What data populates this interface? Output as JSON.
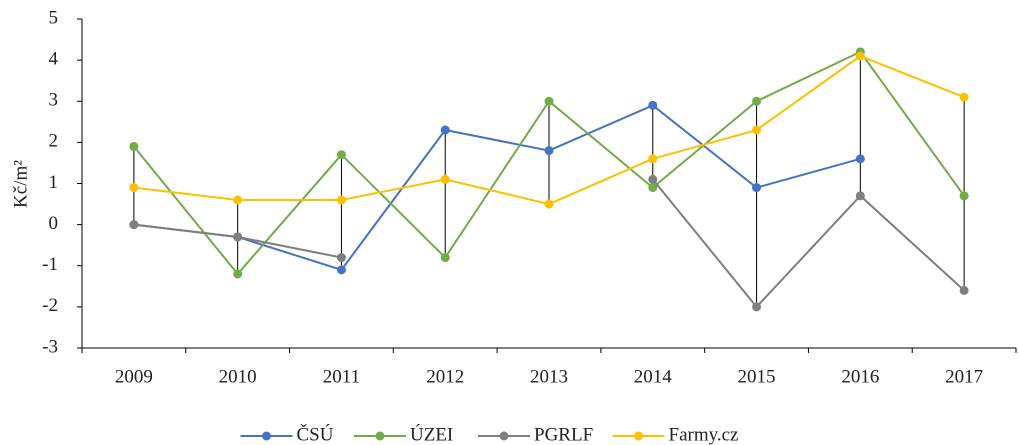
{
  "chart_data": {
    "type": "line",
    "y_label": "Kč/m²",
    "categories": [
      "2009",
      "2010",
      "2011",
      "2012",
      "2013",
      "2014",
      "2015",
      "2016",
      "2017"
    ],
    "series": [
      {
        "name": "ČSÚ",
        "color": "#4472c4",
        "values": [
          0,
          -0.3,
          -1.1,
          2.3,
          1.8,
          2.9,
          0.9,
          1.6,
          null
        ]
      },
      {
        "name": "ÚZEI",
        "color": "#70ad47",
        "values": [
          1.9,
          -1.2,
          1.7,
          -0.8,
          3.0,
          0.9,
          3.0,
          4.2,
          0.7
        ]
      },
      {
        "name": "PGRLF",
        "color": "#7f7f7f",
        "values": [
          0,
          -0.3,
          -0.8,
          null,
          null,
          1.1,
          -2.0,
          0.7,
          -1.6
        ]
      },
      {
        "name": "Farmy.cz",
        "color": "#ffc000",
        "values": [
          0.9,
          0.6,
          0.6,
          1.1,
          0.5,
          1.6,
          2.3,
          4.1,
          3.1
        ]
      }
    ],
    "ylim": [
      -3,
      5
    ],
    "yticks": [
      -3,
      -2,
      -1,
      0,
      1,
      2,
      3,
      4,
      5
    ],
    "high_low_lines": true,
    "grid": false,
    "legend": "bottom"
  }
}
